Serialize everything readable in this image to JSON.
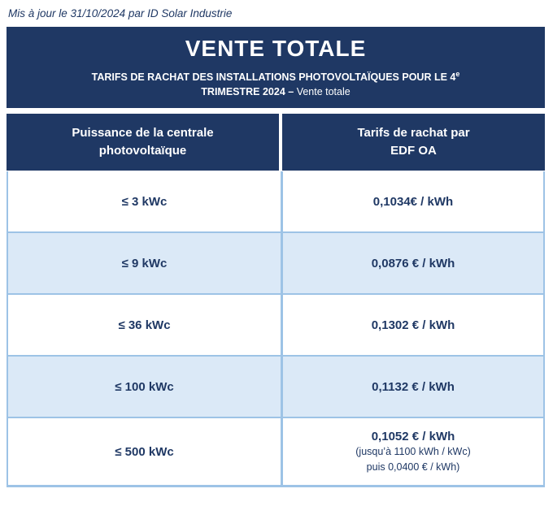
{
  "page": {
    "updated_note": "Mis à jour le 31/10/2024 par ID Solar Industrie"
  },
  "banner": {
    "title": "VENTE TOTALE",
    "subtitle_line1": "TARIFS DE RACHAT DES INSTALLATIONS PHOTOVOLTAÏQUES POUR LE 4",
    "subtitle_superscript": "e",
    "subtitle_line2_bold": "TRIMESTRE 2024 – ",
    "subtitle_line2_regular": "Vente totale"
  },
  "table": {
    "header": {
      "power_col_line1": "Puissance de la centrale",
      "power_col_line2": "photovoltaïque",
      "tariff_col_line1": "Tarifs de rachat par",
      "tariff_col_line2": "EDF OA"
    },
    "rows": [
      {
        "power": "≤ 3 kWc",
        "tariff": "0,1034€ / kWh"
      },
      {
        "power": "≤ 9 kWc",
        "tariff": "0,0876 € / kWh"
      },
      {
        "power": "≤ 36 kWc",
        "tariff": "0,1302 € / kWh"
      },
      {
        "power": "≤ 100 kWc",
        "tariff": "0,1132 € / kWh"
      },
      {
        "power": "≤ 500 kWc",
        "tariff": "0,1052 € / kWh",
        "tariff_note1": "(jusqu’à 1100 kWh / kWc)",
        "tariff_note2": "puis 0,0400 € / kWh)"
      }
    ]
  },
  "colors": {
    "navy": "#1f3864",
    "row_alt_background": "#dbe9f7",
    "border_blue": "#9dc3e6",
    "text_navy": "#1f3864",
    "background": "#ffffff"
  }
}
